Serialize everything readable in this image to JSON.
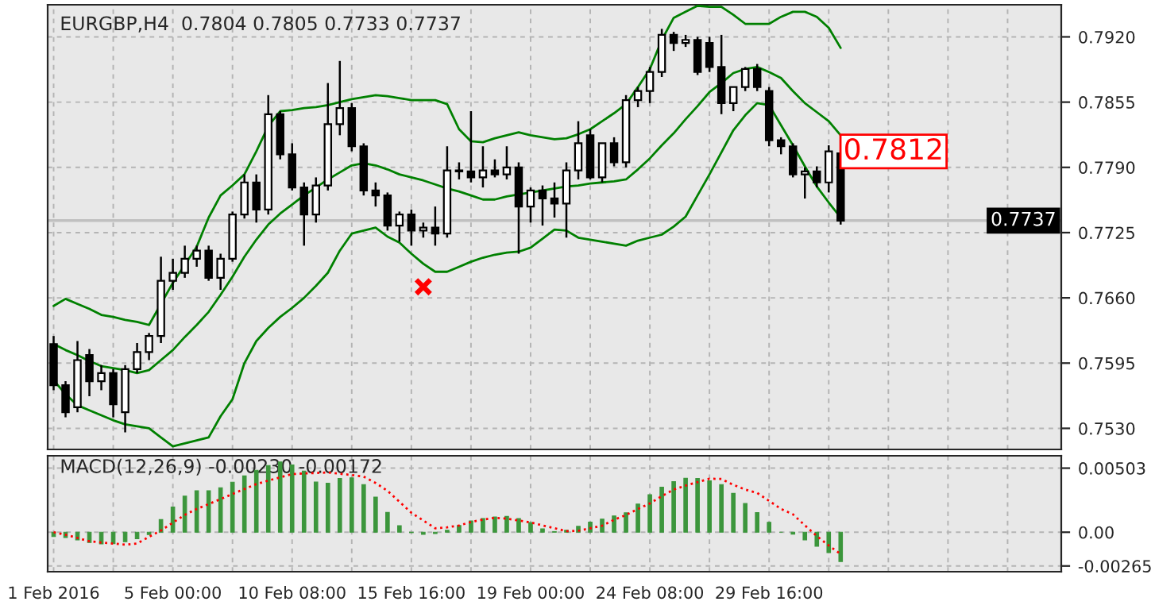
{
  "chart_data": [
    {
      "type": "candlestick",
      "title": "EURGBP,H4  0.7804 0.7805 0.7733 0.7737",
      "categories": [
        null,
        null,
        null,
        null,
        null,
        null,
        null,
        null,
        null,
        null,
        null,
        null,
        null,
        null,
        null,
        null,
        null,
        null,
        null,
        null,
        null,
        null,
        null,
        null,
        null,
        null,
        null,
        null,
        null,
        null,
        null,
        null,
        null,
        null,
        null,
        null,
        null,
        null,
        null,
        null,
        null,
        null,
        null,
        null,
        null,
        null,
        null,
        null,
        null,
        null,
        null,
        null,
        null,
        null,
        null,
        null,
        null,
        null,
        null,
        null,
        null,
        null,
        null,
        null,
        null,
        null,
        null,
        null,
        null,
        null,
        null,
        null,
        null,
        null,
        null,
        null,
        null,
        null,
        null,
        null,
        null,
        null,
        null,
        null,
        null
      ],
      "ohlc": [
        [
          0.7614,
          0.7622,
          0.7568,
          0.7573
        ],
        [
          0.7573,
          0.7577,
          0.7541,
          0.7546
        ],
        [
          0.7551,
          0.7617,
          0.7546,
          0.7598
        ],
        [
          0.7603,
          0.7609,
          0.7562,
          0.7577
        ],
        [
          0.7577,
          0.7593,
          0.7568,
          0.7585
        ],
        [
          0.7585,
          0.7589,
          0.7541,
          0.7554
        ],
        [
          0.7546,
          0.7593,
          0.7526,
          0.7589
        ],
        [
          0.7589,
          0.7615,
          0.7585,
          0.7606
        ],
        [
          0.7606,
          0.7625,
          0.7598,
          0.7622
        ],
        [
          0.7622,
          0.7701,
          0.7615,
          0.7677
        ],
        [
          0.7677,
          0.7699,
          0.7668,
          0.7685
        ],
        [
          0.7685,
          0.7712,
          0.768,
          0.7699
        ],
        [
          0.7699,
          0.7712,
          0.7691,
          0.7707
        ],
        [
          0.7707,
          0.7712,
          0.7677,
          0.768
        ],
        [
          0.768,
          0.7704,
          0.7668,
          0.7699
        ],
        [
          0.7699,
          0.7746,
          0.7696,
          0.7743
        ],
        [
          0.7743,
          0.7783,
          0.7739,
          0.7775
        ],
        [
          0.7775,
          0.7783,
          0.7735,
          0.7748
        ],
        [
          0.7748,
          0.7862,
          0.7743,
          0.7843
        ],
        [
          0.7843,
          0.7846,
          0.7798,
          0.7803
        ],
        [
          0.7803,
          0.7814,
          0.7767,
          0.777
        ],
        [
          0.777,
          0.7775,
          0.7712,
          0.7743
        ],
        [
          0.7743,
          0.778,
          0.7735,
          0.7772
        ],
        [
          0.7772,
          0.7874,
          0.7767,
          0.7833
        ],
        [
          0.7833,
          0.7896,
          0.7822,
          0.7849
        ],
        [
          0.7849,
          0.7854,
          0.7806,
          0.7811
        ],
        [
          0.7811,
          0.7814,
          0.7762,
          0.7767
        ],
        [
          0.7767,
          0.7775,
          0.7751,
          0.7762
        ],
        [
          0.7762,
          0.7765,
          0.7727,
          0.7732
        ],
        [
          0.7732,
          0.7746,
          0.7716,
          0.7743
        ],
        [
          0.7743,
          0.7748,
          0.7712,
          0.7727
        ],
        [
          0.7727,
          0.7735,
          0.772,
          0.773
        ],
        [
          0.773,
          0.7751,
          0.7712,
          0.7724
        ],
        [
          0.7724,
          0.7811,
          0.772,
          0.7787
        ],
        [
          0.7787,
          0.7795,
          0.7778,
          0.7786
        ],
        [
          0.7786,
          0.7846,
          0.7775,
          0.778
        ],
        [
          0.778,
          0.7811,
          0.777,
          0.7787
        ],
        [
          0.7787,
          0.7798,
          0.778,
          0.7783
        ],
        [
          0.7783,
          0.7811,
          0.7778,
          0.779
        ],
        [
          0.779,
          0.7795,
          0.7704,
          0.7751
        ],
        [
          0.7751,
          0.777,
          0.7735,
          0.7767
        ],
        [
          0.7767,
          0.7772,
          0.7732,
          0.7759
        ],
        [
          0.7759,
          0.7775,
          0.774,
          0.7754
        ],
        [
          0.7754,
          0.7795,
          0.772,
          0.7787
        ],
        [
          0.7787,
          0.7836,
          0.7778,
          0.7814
        ],
        [
          0.7822,
          0.7828,
          0.7778,
          0.778
        ],
        [
          0.778,
          0.7814,
          0.7775,
          0.7814
        ],
        [
          0.7814,
          0.782,
          0.7791,
          0.7795
        ],
        [
          0.7795,
          0.7862,
          0.779,
          0.7857
        ],
        [
          0.7857,
          0.787,
          0.785,
          0.7866
        ],
        [
          0.7866,
          0.789,
          0.7854,
          0.7885
        ],
        [
          0.7885,
          0.7928,
          0.788,
          0.7922
        ],
        [
          0.7922,
          0.7925,
          0.7906,
          0.7914
        ],
        [
          0.7914,
          0.7922,
          0.791,
          0.7917
        ],
        [
          0.7917,
          0.792,
          0.7882,
          0.7885
        ],
        [
          0.7914,
          0.792,
          0.7885,
          0.789
        ],
        [
          0.789,
          0.7922,
          0.7843,
          0.7854
        ],
        [
          0.7854,
          0.787,
          0.7846,
          0.787
        ],
        [
          0.787,
          0.789,
          0.7866,
          0.7888
        ],
        [
          0.7888,
          0.7893,
          0.7866,
          0.787
        ],
        [
          0.7866,
          0.787,
          0.7811,
          0.7817
        ],
        [
          0.7817,
          0.782,
          0.7803,
          0.7811
        ],
        [
          0.7811,
          0.7814,
          0.778,
          0.7783
        ],
        [
          0.7783,
          0.779,
          0.7759,
          0.7786
        ],
        [
          0.7786,
          0.7791,
          0.777,
          0.7775
        ],
        [
          0.7775,
          0.7812,
          0.7765,
          0.7806
        ],
        [
          0.7804,
          0.7805,
          0.7733,
          0.7737
        ],
        null,
        null,
        null,
        null,
        null,
        null,
        null,
        null,
        null,
        null,
        null,
        null,
        null,
        null,
        null,
        null,
        null,
        null
      ],
      "series": [
        {
          "type": "line",
          "color": "#008000",
          "values": [
            0.7652,
            0.7659,
            0.7654,
            0.7649,
            0.7643,
            0.7641,
            0.7638,
            0.7636,
            0.7633,
            0.7654,
            0.7675,
            0.7693,
            0.7711,
            0.774,
            0.7762,
            0.7772,
            0.7783,
            0.7806,
            0.7831,
            0.7846,
            0.7847,
            0.7849,
            0.785,
            0.7852,
            0.7855,
            0.7858,
            0.786,
            0.7862,
            0.7861,
            0.7859,
            0.7857,
            0.7857,
            0.7857,
            0.7853,
            0.7828,
            0.7816,
            0.7815,
            0.7819,
            0.7822,
            0.7825,
            0.7822,
            0.782,
            0.7818,
            0.7819,
            0.7823,
            0.7828,
            0.7836,
            0.7844,
            0.7853,
            0.787,
            0.7888,
            0.7917,
            0.7939,
            0.7945,
            0.7951,
            0.795,
            0.795,
            0.7942,
            0.7933,
            0.7933,
            0.7933,
            0.794,
            0.7945,
            0.7945,
            0.794,
            0.7929,
            0.7909,
            null,
            null,
            null,
            null,
            null,
            null,
            null,
            null,
            null,
            null,
            null,
            null,
            null,
            null,
            null,
            null,
            null,
            null
          ]
        },
        {
          "type": "line",
          "color": "#008000",
          "values": [
            0.7614,
            0.7608,
            0.7603,
            0.7597,
            0.7592,
            0.759,
            0.7588,
            0.7585,
            0.7588,
            0.7598,
            0.7608,
            0.7621,
            0.7633,
            0.7646,
            0.7663,
            0.7681,
            0.7701,
            0.7718,
            0.7733,
            0.7744,
            0.7753,
            0.7762,
            0.777,
            0.7778,
            0.7785,
            0.7792,
            0.7794,
            0.7792,
            0.7788,
            0.7783,
            0.778,
            0.7777,
            0.7773,
            0.7769,
            0.7766,
            0.7762,
            0.7758,
            0.7758,
            0.7761,
            0.7763,
            0.7765,
            0.7767,
            0.7769,
            0.7771,
            0.7772,
            0.7774,
            0.7775,
            0.7776,
            0.7778,
            0.7788,
            0.7799,
            0.7812,
            0.7824,
            0.7838,
            0.7851,
            0.7865,
            0.7874,
            0.7884,
            0.7888,
            0.789,
            0.7885,
            0.7879,
            0.7866,
            0.7854,
            0.7845,
            0.7836,
            0.7822,
            null,
            null,
            null,
            null,
            null,
            null,
            null,
            null,
            null,
            null,
            null,
            null,
            null,
            null,
            null,
            null,
            null,
            null
          ]
        },
        {
          "type": "line",
          "color": "#008000",
          "values": [
            0.7578,
            0.7564,
            0.7553,
            0.7548,
            0.7543,
            0.7538,
            0.7534,
            0.7532,
            0.753,
            0.7521,
            0.7512,
            0.7515,
            0.7518,
            0.7521,
            0.7542,
            0.7559,
            0.7595,
            0.7617,
            0.763,
            0.7641,
            0.765,
            0.766,
            0.7672,
            0.7685,
            0.7707,
            0.7724,
            0.7727,
            0.773,
            0.7721,
            0.7715,
            0.7704,
            0.7694,
            0.7686,
            0.7686,
            0.7691,
            0.7696,
            0.77,
            0.7703,
            0.7705,
            0.7706,
            0.771,
            0.7719,
            0.7728,
            0.7727,
            0.772,
            0.7718,
            0.7716,
            0.7714,
            0.7712,
            0.7717,
            0.772,
            0.7723,
            0.7731,
            0.7741,
            0.7762,
            0.7783,
            0.7805,
            0.7827,
            0.7842,
            0.7854,
            0.7852,
            0.7832,
            0.7812,
            0.7791,
            0.7771,
            0.7755,
            0.774,
            null,
            null,
            null,
            null,
            null,
            null,
            null,
            null,
            null,
            null,
            null,
            null,
            null,
            null,
            null,
            null,
            null,
            null
          ]
        },
        {
          "type": "scatter",
          "color": "#ff0000",
          "marker": "cross",
          "values": [
            null,
            null,
            null,
            null,
            null,
            null,
            null,
            null,
            null,
            null,
            null,
            null,
            null,
            null,
            null,
            null,
            null,
            null,
            null,
            null,
            null,
            null,
            null,
            null,
            null,
            null,
            null,
            null,
            null,
            null,
            null,
            0.7671,
            null,
            null,
            null,
            null,
            null,
            null,
            null,
            null,
            null,
            null,
            null,
            null,
            null,
            null,
            null,
            null,
            null,
            null,
            null,
            null,
            null,
            null,
            null,
            null,
            null,
            null,
            null,
            null,
            null,
            null,
            null,
            null,
            null,
            null,
            null,
            null,
            null,
            null,
            null,
            null,
            null,
            null,
            null,
            null,
            null,
            null,
            null,
            null,
            null,
            null,
            null,
            null,
            null
          ]
        }
      ],
      "ylim": [
        0.7509,
        0.7952
      ],
      "yticks": [
        {
          "value": 0.753,
          "label": "0.7530"
        },
        {
          "value": 0.7595,
          "label": "0.7595"
        },
        {
          "value": 0.766,
          "label": "0.7660"
        },
        {
          "value": 0.7725,
          "label": "0.7725"
        },
        {
          "value": 0.779,
          "label": "0.7790"
        },
        {
          "value": 0.7855,
          "label": "0.7855"
        },
        {
          "value": 0.792,
          "label": "0.7920"
        }
      ],
      "tick_labels": "y",
      "grid": true,
      "ref_lines": [
        {
          "axis": "y",
          "value": 0.7737,
          "label": "0.7737",
          "color": "#c0c0c0"
        }
      ],
      "annotations": [
        "0.7812"
      ]
    },
    {
      "type": "bar",
      "title": "MACD(12,26,9) -0.00230 -0.00172",
      "categories": [
        "1 Feb 2016",
        null,
        null,
        null,
        null,
        null,
        null,
        null,
        null,
        null,
        "5 Feb 00:00",
        null,
        null,
        null,
        null,
        null,
        null,
        null,
        null,
        null,
        "10 Feb 08:00",
        null,
        null,
        null,
        null,
        null,
        null,
        null,
        null,
        null,
        "15 Feb 16:00",
        null,
        null,
        null,
        null,
        null,
        null,
        null,
        null,
        null,
        "19 Feb 00:00",
        null,
        null,
        null,
        null,
        null,
        null,
        null,
        null,
        null,
        "24 Feb 08:00",
        null,
        null,
        null,
        null,
        null,
        null,
        null,
        null,
        null,
        "29 Feb 16:00",
        null,
        null,
        null,
        null,
        null,
        null,
        null,
        null,
        null,
        null,
        null,
        null,
        null,
        null,
        null,
        null,
        null,
        null,
        null,
        null,
        null,
        null,
        null,
        null
      ],
      "series": [
        {
          "type": "bar",
          "color": "#3c963c",
          "values": [
            -0.00034,
            -0.00042,
            -0.00061,
            -0.00081,
            -0.00092,
            -0.0009,
            -0.00075,
            -0.00051,
            -0.00018,
            0.00099,
            0.00198,
            0.00283,
            0.00326,
            0.00326,
            0.00349,
            0.00393,
            0.00442,
            0.00486,
            0.00524,
            0.00552,
            0.00528,
            0.0048,
            0.00394,
            0.00385,
            0.00422,
            0.00427,
            0.00374,
            0.00276,
            0.00155,
            0.00051,
            -3e-05,
            -0.00017,
            -0.00011,
            0.00015,
            0.00053,
            0.00089,
            0.00108,
            0.0012,
            0.00124,
            0.00107,
            0.00076,
            0.00027,
            5e-05,
            0.00015,
            0.00046,
            0.00079,
            0.00103,
            0.00128,
            0.00152,
            0.00221,
            0.00295,
            0.00354,
            0.00397,
            0.00423,
            0.00422,
            0.00403,
            0.00374,
            0.00305,
            0.00225,
            0.00154,
            0.00078,
            0,
            -0.00015,
            -0.0006,
            -0.0011,
            -0.0016,
            -0.0023,
            null,
            null,
            null,
            null,
            null,
            null,
            null,
            null,
            null,
            null,
            null,
            null,
            null,
            null,
            null,
            null,
            null,
            null
          ]
        },
        {
          "type": "line",
          "color": "#ff0000",
          "line_style": "dotted",
          "values": [
            0,
            -0.0002,
            -0.00045,
            -0.00071,
            -0.00081,
            -0.00089,
            -0.00098,
            -0.00089,
            -0.00036,
            0.00013,
            0.00075,
            0.00136,
            0.00182,
            0.00221,
            0.0026,
            0.003,
            0.00339,
            0.00378,
            0.00405,
            0.00431,
            0.00456,
            0.00462,
            0.00465,
            0.00469,
            0.00459,
            0.00449,
            0.00436,
            0.00387,
            0.00325,
            0.00239,
            0.00153,
            0.00092,
            0.00031,
            0.00038,
            0.00053,
            0.0008,
            0.00099,
            0.00113,
            0.00107,
            0.00092,
            0.00077,
            0.00053,
            0.00032,
            8e-05,
            0.00011,
            0.00031,
            0.00051,
            0.00098,
            0.00135,
            0.00182,
            0.00226,
            0.00283,
            0.00335,
            0.00366,
            0.00393,
            0.0042,
            0.00418,
            0.00372,
            0.00335,
            0.00308,
            0.00246,
            0.00183,
            0.0014,
            0.00054,
            -0.0003,
            -0.00104,
            -0.00172,
            null,
            null,
            null,
            null,
            null,
            null,
            null,
            null,
            null,
            null,
            null,
            null,
            null,
            null,
            null,
            null,
            null,
            null
          ]
        }
      ],
      "ylim": [
        -0.0031,
        0.006
      ],
      "yticks": [
        {
          "value": -0.00265,
          "label": "-0.00265"
        },
        {
          "value": 0,
          "label": "0.00"
        },
        {
          "value": 0.00503,
          "label": "0.00503"
        }
      ],
      "grid": true
    }
  ]
}
